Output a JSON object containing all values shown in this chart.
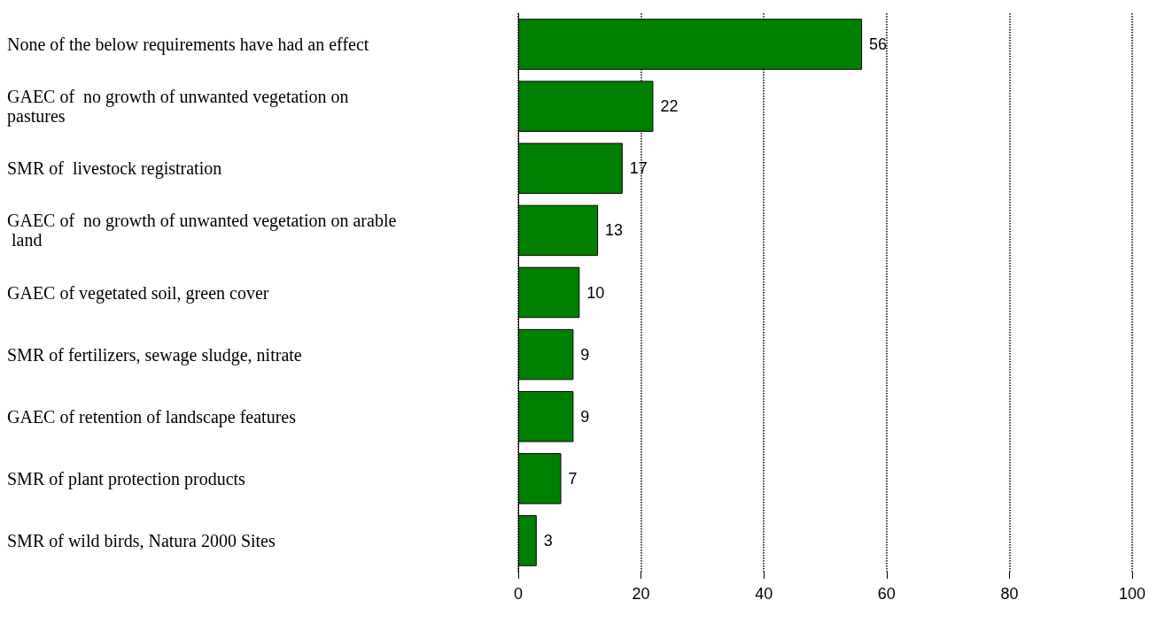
{
  "chart_data": {
    "type": "bar",
    "orientation": "horizontal",
    "categories": [
      "None of the below requirements have had an effect",
      "GAEC of  no growth of unwanted vegetation on pastures",
      "SMR of  livestock registration",
      "GAEC of  no growth of unwanted vegetation on arable land",
      "GAEC of vegetated soil, green cover",
      "SMR of fertilizers, sewage sludge, nitrate",
      "GAEC of retention of landscape features",
      "SMR of plant protection products",
      "SMR of wild birds, Natura 2000 Sites"
    ],
    "values": [
      56,
      22,
      17,
      13,
      10,
      9,
      9,
      7,
      3
    ],
    "color": "#008000",
    "xlim": [
      0,
      100
    ],
    "xticks": [
      0,
      20,
      40,
      60,
      80,
      100
    ],
    "grid": "x",
    "data_labels": true
  }
}
